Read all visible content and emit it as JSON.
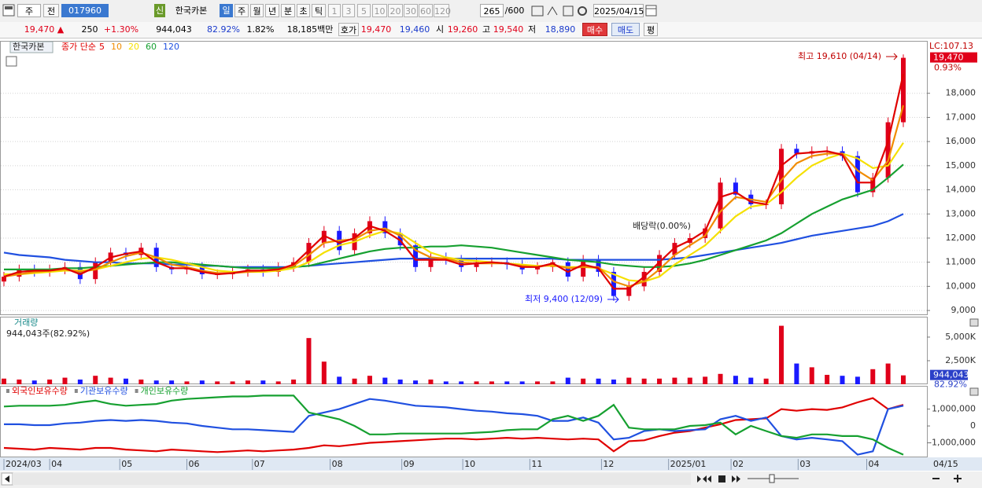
{
  "toolbar": {
    "row1": [
      "주",
      "전",
      "017960",
      "신",
      "한국카본",
      "일",
      "주",
      "월",
      "년",
      "분",
      "초",
      "틱",
      "1",
      "3",
      "5",
      "10",
      "20",
      "30",
      "60",
      "120",
      "265",
      "/600",
      "2025/04/15"
    ],
    "row2": [
      "19,470 ▲",
      "250",
      "+1.30%",
      "944,043",
      "82.92%",
      "1.82%",
      "18,185백만",
      "호가",
      "19,470",
      "19,460",
      "시",
      "19,260",
      "고",
      "19,540",
      "저",
      "18,890",
      "매수",
      "매도",
      "평"
    ]
  },
  "chart_data": [
    {
      "type": "candlestick",
      "legend_title": "한국카본",
      "legend_prefix": "종가 단순",
      "up_color": "#e0001a",
      "down_color": "#1a1aff",
      "xlim": [
        0,
        59
      ],
      "ylim": [
        8840,
        20075
      ],
      "yticks": [
        {
          "value": 9000,
          "label": "9,000"
        },
        {
          "value": 10000,
          "label": "10,000"
        },
        {
          "value": 11000,
          "label": "11,000"
        },
        {
          "value": 12000,
          "label": "12,000"
        },
        {
          "value": 13000,
          "label": "13,000"
        },
        {
          "value": 14000,
          "label": "14,000"
        },
        {
          "value": 15000,
          "label": "15,000"
        },
        {
          "value": 16000,
          "label": "16,000"
        },
        {
          "value": 17000,
          "label": "17,000"
        },
        {
          "value": 18000,
          "label": "18,000"
        }
      ],
      "grid": true,
      "open": [
        10200,
        10400,
        10700,
        10600,
        10700,
        10800,
        10300,
        11000,
        11400,
        11300,
        11600,
        10800,
        10700,
        10800,
        10500,
        10500,
        10600,
        10700,
        10600,
        10800,
        11000,
        11800,
        12300,
        11500,
        12200,
        12700,
        12200,
        11700,
        10800,
        11200,
        11100,
        10800,
        11000,
        11000,
        10900,
        10700,
        10800,
        11000,
        10400,
        11100,
        10600,
        9600,
        10000,
        10600,
        11300,
        11800,
        12000,
        12400,
        14300,
        13800,
        13400,
        13400,
        15700,
        15500,
        15600,
        15600,
        15400,
        13900,
        14500,
        16800
      ],
      "high": [
        10600,
        10900,
        10900,
        10900,
        11000,
        11000,
        11200,
        11600,
        11600,
        11800,
        11800,
        11000,
        11000,
        11000,
        10700,
        10800,
        10900,
        10900,
        11000,
        11200,
        12000,
        12500,
        12500,
        12400,
        12900,
        12900,
        12400,
        11900,
        11400,
        11400,
        11300,
        11200,
        11200,
        11200,
        11100,
        11000,
        11200,
        11200,
        11300,
        11300,
        10800,
        10200,
        10800,
        11500,
        12000,
        12200,
        12600,
        14500,
        14500,
        14000,
        13600,
        15900,
        15900,
        15800,
        15800,
        15800,
        15600,
        14700,
        17000,
        19610
      ],
      "low": [
        10000,
        10200,
        10400,
        10400,
        10500,
        10100,
        10100,
        10800,
        11100,
        11100,
        10600,
        10500,
        10500,
        10300,
        10300,
        10300,
        10400,
        10400,
        10400,
        10600,
        10800,
        11600,
        11300,
        11300,
        12000,
        12000,
        11500,
        10600,
        10600,
        10900,
        10600,
        10600,
        10800,
        10700,
        10500,
        10500,
        10600,
        10200,
        10200,
        10400,
        9400,
        9400,
        9800,
        10400,
        11100,
        11600,
        11800,
        12200,
        13600,
        13200,
        13200,
        13200,
        15300,
        15300,
        15400,
        15200,
        13700,
        13700,
        14300,
        16600
      ],
      "close": [
        10400,
        10700,
        10600,
        10700,
        10800,
        10300,
        11000,
        11400,
        11300,
        11600,
        10800,
        10700,
        10800,
        10500,
        10500,
        10600,
        10700,
        10600,
        10800,
        11000,
        11800,
        12300,
        11500,
        12200,
        12700,
        12200,
        11700,
        10800,
        11200,
        11100,
        10800,
        11000,
        11000,
        10900,
        10700,
        10800,
        11000,
        10400,
        11100,
        10600,
        9600,
        10000,
        10600,
        11300,
        11800,
        12000,
        12400,
        14300,
        13800,
        13400,
        13400,
        15700,
        15500,
        15600,
        15600,
        15400,
        13900,
        14500,
        16800,
        19470
      ],
      "series": [
        {
          "name": "5",
          "color": "#e00000",
          "values": [
            10400,
            10600,
            10650,
            10650,
            10750,
            10500,
            10800,
            11200,
            11350,
            11450,
            11000,
            10750,
            10750,
            10600,
            10500,
            10550,
            10650,
            10650,
            10700,
            10900,
            11500,
            12100,
            11800,
            12000,
            12500,
            12300,
            11900,
            11100,
            11100,
            11100,
            10900,
            10950,
            11000,
            10950,
            10800,
            10800,
            10950,
            10600,
            10900,
            10750,
            9900,
            9900,
            10400,
            11000,
            11600,
            11900,
            12300,
            13700,
            13900,
            13500,
            13400,
            15000,
            15500,
            15550,
            15600,
            15450,
            14300,
            14300,
            16000,
            18800
          ]
        },
        {
          "name": "10",
          "color": "#f08c00",
          "values": [
            10400,
            10500,
            10600,
            10650,
            10700,
            10600,
            10700,
            11000,
            11250,
            11400,
            11200,
            10900,
            10800,
            10650,
            10550,
            10550,
            10600,
            10650,
            10700,
            10850,
            11300,
            11800,
            11900,
            11950,
            12300,
            12400,
            12100,
            11500,
            11200,
            11150,
            11000,
            10950,
            10950,
            10950,
            10850,
            10800,
            10900,
            10750,
            10800,
            10800,
            10200,
            10000,
            10200,
            10700,
            11300,
            11700,
            12100,
            13100,
            13700,
            13600,
            13500,
            14400,
            15100,
            15400,
            15500,
            15500,
            14800,
            14400,
            15200,
            17500
          ]
        },
        {
          "name": "20",
          "color": "#f5e000",
          "values": [
            10500,
            10500,
            10550,
            10600,
            10650,
            10650,
            10700,
            10850,
            11000,
            11150,
            11200,
            11100,
            10950,
            10800,
            10650,
            10600,
            10600,
            10600,
            10650,
            10750,
            11000,
            11400,
            11700,
            11850,
            12100,
            12300,
            12200,
            11800,
            11400,
            11200,
            11100,
            11050,
            11000,
            10950,
            10900,
            10850,
            10850,
            10800,
            10800,
            10750,
            10500,
            10250,
            10200,
            10400,
            10900,
            11300,
            11700,
            12300,
            12900,
            13300,
            13400,
            13900,
            14500,
            15000,
            15300,
            15500,
            15300,
            14900,
            15000,
            15950
          ]
        },
        {
          "name": "60",
          "color": "#16a030",
          "values": [
            10700,
            10700,
            10700,
            10700,
            10750,
            10750,
            10800,
            10850,
            10900,
            10950,
            11000,
            11000,
            10950,
            10900,
            10850,
            10800,
            10750,
            10750,
            10750,
            10800,
            10850,
            11000,
            11150,
            11300,
            11450,
            11550,
            11600,
            11600,
            11650,
            11650,
            11700,
            11650,
            11600,
            11500,
            11400,
            11300,
            11200,
            11100,
            11050,
            11000,
            10900,
            10850,
            10800,
            10800,
            10850,
            10950,
            11100,
            11300,
            11500,
            11700,
            11900,
            12200,
            12600,
            13000,
            13300,
            13600,
            13800,
            14000,
            14500,
            15050
          ]
        },
        {
          "name": "120",
          "color": "#2050e0",
          "values": [
            11400,
            11300,
            11250,
            11200,
            11100,
            11050,
            11000,
            11000,
            10950,
            10950,
            10950,
            10900,
            10900,
            10850,
            10850,
            10800,
            10800,
            10800,
            10800,
            10800,
            10850,
            10900,
            10950,
            11000,
            11050,
            11100,
            11150,
            11150,
            11150,
            11150,
            11150,
            11150,
            11150,
            11150,
            11150,
            11150,
            11150,
            11100,
            11100,
            11100,
            11100,
            11100,
            11100,
            11100,
            11150,
            11200,
            11300,
            11400,
            11500,
            11600,
            11700,
            11800,
            11950,
            12100,
            12200,
            12300,
            12400,
            12500,
            12700,
            13000
          ]
        }
      ],
      "annotations": {
        "high": "최고 19,610 (04/14)",
        "low": "최저 9,400 (12/09)",
        "dividend": "배당락(0.00%)",
        "lc": "LC:107.13",
        "change": "0.93%"
      },
      "last_price": {
        "value": 19470,
        "label": "19,470"
      }
    },
    {
      "type": "bar",
      "title": "거래량",
      "subtitle": "944,043주(82.92%)",
      "xlim": [
        0,
        59
      ],
      "ylim": [
        0,
        7080000
      ],
      "yticks": [
        {
          "value": 2500000,
          "label": "2,500K"
        },
        {
          "value": 5000000,
          "label": "5,000K"
        }
      ],
      "values": [
        600000,
        500000,
        400000,
        500000,
        700000,
        500000,
        900000,
        700000,
        600000,
        500000,
        400000,
        400000,
        300000,
        400000,
        300000,
        300000,
        400000,
        400000,
        300000,
        500000,
        4900000,
        2400000,
        800000,
        600000,
        900000,
        700000,
        500000,
        400000,
        500000,
        300000,
        300000,
        300000,
        300000,
        300000,
        300000,
        300000,
        300000,
        700000,
        600000,
        600000,
        500000,
        700000,
        600000,
        600000,
        700000,
        700000,
        800000,
        1100000,
        900000,
        700000,
        600000,
        6200000,
        2200000,
        1800000,
        1000000,
        900000,
        800000,
        1600000,
        2200000,
        944043
      ],
      "last_value": {
        "value": 944043,
        "label": "944,043"
      },
      "ratio": "82.92%"
    },
    {
      "type": "line",
      "xlim": [
        0,
        59
      ],
      "ylim": [
        -1860000,
        2330000
      ],
      "yticks": [
        {
          "value": -1000000,
          "label": "-1,000,000"
        },
        0,
        {
          "value": 1000000,
          "label": "1,000,000"
        }
      ],
      "xticks": [
        {
          "value": 0,
          "label": "2024/03"
        },
        {
          "value": 3,
          "label": "04"
        },
        {
          "value": 7.6,
          "label": "05"
        },
        {
          "value": 12,
          "label": "06"
        },
        {
          "value": 16.3,
          "label": "07"
        },
        {
          "value": 21.4,
          "label": "08"
        },
        {
          "value": 26.1,
          "label": "09"
        },
        {
          "value": 30.1,
          "label": "10"
        },
        {
          "value": 34.5,
          "label": "11"
        },
        {
          "value": 39.2,
          "label": "12"
        },
        {
          "value": 43.6,
          "label": "2025/01"
        },
        {
          "value": 47.7,
          "label": "02"
        },
        {
          "value": 52.1,
          "label": "03"
        },
        {
          "value": 56.6,
          "label": "04"
        }
      ],
      "last_date": "04/15",
      "series": [
        {
          "name": "외국인보유수량",
          "color": "#e00000",
          "values": [
            -1300000,
            -1350000,
            -1400000,
            -1300000,
            -1350000,
            -1400000,
            -1300000,
            -1300000,
            -1400000,
            -1450000,
            -1500000,
            -1400000,
            -1450000,
            -1500000,
            -1550000,
            -1500000,
            -1450000,
            -1500000,
            -1450000,
            -1400000,
            -1300000,
            -1150000,
            -1200000,
            -1100000,
            -1000000,
            -950000,
            -900000,
            -850000,
            -800000,
            -750000,
            -750000,
            -800000,
            -750000,
            -700000,
            -750000,
            -700000,
            -750000,
            -800000,
            -750000,
            -800000,
            -1500000,
            -900000,
            -850000,
            -600000,
            -400000,
            -300000,
            -100000,
            100000,
            350000,
            400000,
            450000,
            1000000,
            900000,
            1000000,
            950000,
            1100000,
            1400000,
            1650000,
            1000000,
            1250000
          ]
        },
        {
          "name": "기관보유수량",
          "color": "#2050e0",
          "values": [
            100000,
            100000,
            50000,
            50000,
            150000,
            200000,
            300000,
            350000,
            300000,
            350000,
            300000,
            200000,
            150000,
            0,
            -100000,
            -200000,
            -200000,
            -250000,
            -300000,
            -350000,
            600000,
            800000,
            1000000,
            1300000,
            1600000,
            1500000,
            1350000,
            1200000,
            1150000,
            1100000,
            1000000,
            900000,
            850000,
            750000,
            700000,
            600000,
            300000,
            300000,
            500000,
            200000,
            -800000,
            -700000,
            -300000,
            -200000,
            -300000,
            -250000,
            -200000,
            400000,
            600000,
            300000,
            500000,
            -600000,
            -800000,
            -700000,
            -800000,
            -900000,
            -1700000,
            -1500000,
            1000000,
            1200000
          ]
        },
        {
          "name": "개인보유수량",
          "color": "#16a030",
          "values": [
            1150000,
            1200000,
            1200000,
            1200000,
            1250000,
            1400000,
            1500000,
            1300000,
            1200000,
            1250000,
            1300000,
            1500000,
            1600000,
            1650000,
            1700000,
            1750000,
            1750000,
            1800000,
            1800000,
            1800000,
            800000,
            600000,
            400000,
            0,
            -500000,
            -500000,
            -450000,
            -450000,
            -450000,
            -450000,
            -450000,
            -400000,
            -350000,
            -250000,
            -200000,
            -200000,
            400000,
            600000,
            300000,
            600000,
            1250000,
            -100000,
            -200000,
            -200000,
            -200000,
            0,
            50000,
            200000,
            -500000,
            0,
            -300000,
            -600000,
            -700000,
            -500000,
            -500000,
            -600000,
            -600000,
            -800000,
            -1300000,
            -1700000
          ]
        }
      ]
    }
  ]
}
